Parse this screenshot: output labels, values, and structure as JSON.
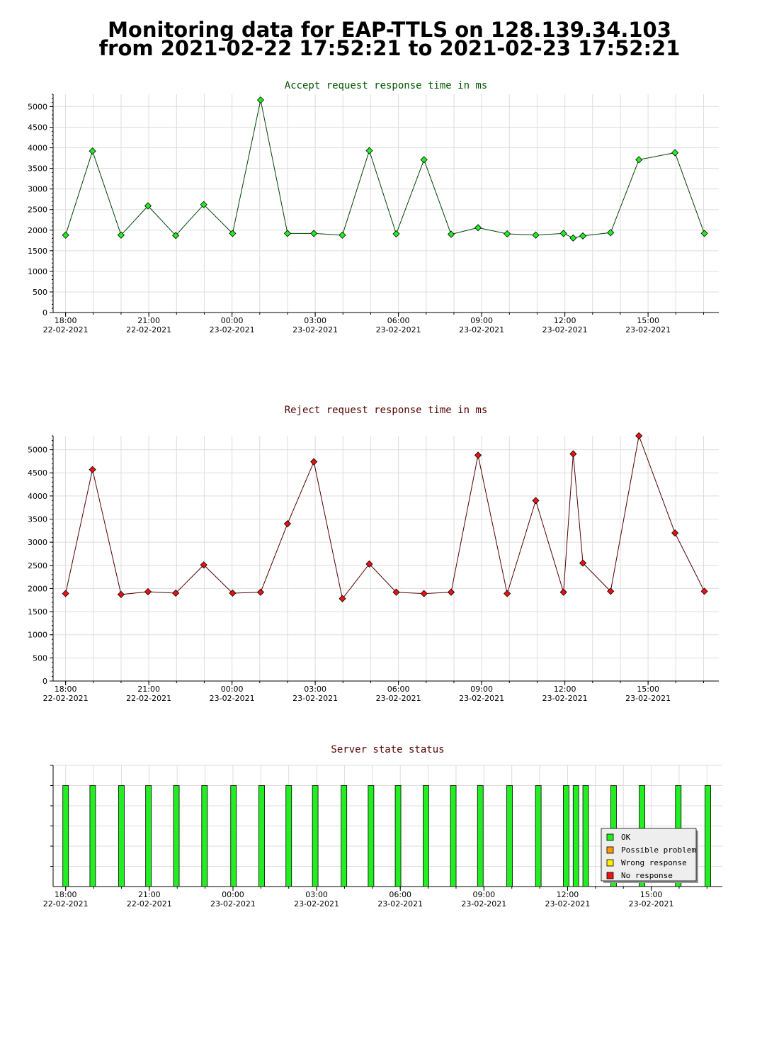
{
  "page": {
    "title_line_1": "Monitoring data for EAP-TTLS on 128.139.34.103",
    "title_line_2": "from 2021-02-22 17:52:21 to 2021-02-23 17:52:21"
  },
  "colors": {
    "accept_line": "#004400",
    "accept_marker": "#22ee22",
    "reject_line": "#550000",
    "reject_marker": "#ee1111",
    "status_ok": "#22ee22",
    "status_possible_problem": "#ff9900",
    "status_wrong_response": "#ffee00",
    "status_no_response": "#ee1111",
    "grid": "#dddddd",
    "accept_title": "#005500",
    "reject_title": "#550000",
    "status_title": "#550000"
  },
  "x_axis": {
    "ticks": [
      {
        "time": "18:00",
        "date": "22-02-2021",
        "hour": 0
      },
      {
        "time": "21:00",
        "date": "22-02-2021",
        "hour": 3
      },
      {
        "time": "00:00",
        "date": "23-02-2021",
        "hour": 6
      },
      {
        "time": "03:00",
        "date": "23-02-2021",
        "hour": 9
      },
      {
        "time": "06:00",
        "date": "23-02-2021",
        "hour": 12
      },
      {
        "time": "09:00",
        "date": "23-02-2021",
        "hour": 15
      },
      {
        "time": "12:00",
        "date": "23-02-2021",
        "hour": 18
      },
      {
        "time": "15:00",
        "date": "23-02-2021",
        "hour": 21
      }
    ],
    "range_hours": [
      -0.45,
      23.55
    ]
  },
  "chart_data": [
    {
      "id": "accept",
      "type": "line",
      "title": "Accept request response time in ms",
      "ylim": [
        0,
        5300
      ],
      "yticks": [
        0,
        500,
        1000,
        1500,
        2000,
        2500,
        3000,
        3500,
        4000,
        4500,
        5000
      ],
      "grid": true,
      "x": [
        0,
        0.97,
        2.0,
        2.97,
        3.97,
        4.98,
        6.02,
        7.03,
        8.0,
        8.95,
        9.98,
        10.95,
        11.92,
        12.92,
        13.9,
        14.87,
        15.92,
        16.95,
        17.95,
        18.3,
        18.65,
        19.65,
        20.67,
        21.97,
        23.03
      ],
      "values": [
        1880,
        3920,
        1880,
        2590,
        1870,
        2620,
        1920,
        5160,
        1920,
        1920,
        1880,
        3930,
        1910,
        3710,
        1900,
        2060,
        1910,
        1880,
        1920,
        1810,
        1860,
        1940,
        3710,
        3880,
        1920
      ]
    },
    {
      "id": "reject",
      "type": "line",
      "title": "Reject request response time in ms",
      "ylim": [
        0,
        5300
      ],
      "yticks": [
        0,
        500,
        1000,
        1500,
        2000,
        2500,
        3000,
        3500,
        4000,
        4500,
        5000
      ],
      "grid": true,
      "x": [
        0,
        0.97,
        2.0,
        2.97,
        3.97,
        4.98,
        6.02,
        7.03,
        8.0,
        8.95,
        9.98,
        10.95,
        11.92,
        12.92,
        13.9,
        14.87,
        15.92,
        16.95,
        17.95,
        18.3,
        18.65,
        19.65,
        20.67,
        21.97,
        23.03
      ],
      "values": [
        1890,
        4570,
        1870,
        1930,
        1900,
        2510,
        1900,
        1920,
        3400,
        4740,
        1780,
        2530,
        1920,
        1890,
        1920,
        4880,
        1890,
        3900,
        1920,
        4910,
        2550,
        1940,
        5300,
        3200,
        1940
      ]
    },
    {
      "id": "status",
      "type": "bar",
      "title": "Server state status",
      "grid": true,
      "x": [
        0,
        0.97,
        2.0,
        2.97,
        3.97,
        4.98,
        6.02,
        7.03,
        8.0,
        8.95,
        9.98,
        10.95,
        11.92,
        12.92,
        13.9,
        14.87,
        15.92,
        16.95,
        17.95,
        18.3,
        18.65,
        19.65,
        20.67,
        21.97,
        23.03
      ],
      "states": [
        "OK",
        "OK",
        "OK",
        "OK",
        "OK",
        "OK",
        "OK",
        "OK",
        "OK",
        "OK",
        "OK",
        "OK",
        "OK",
        "OK",
        "OK",
        "OK",
        "OK",
        "OK",
        "OK",
        "OK",
        "OK",
        "OK",
        "OK",
        "OK",
        "OK"
      ],
      "legend": {
        "placement": "bottom-right",
        "items": [
          {
            "label": "OK",
            "color": "#22ee22"
          },
          {
            "label": "Possible problem",
            "color": "#ff9900"
          },
          {
            "label": "Wrong response",
            "color": "#ffee00"
          },
          {
            "label": "No response",
            "color": "#ee1111"
          }
        ]
      }
    }
  ]
}
